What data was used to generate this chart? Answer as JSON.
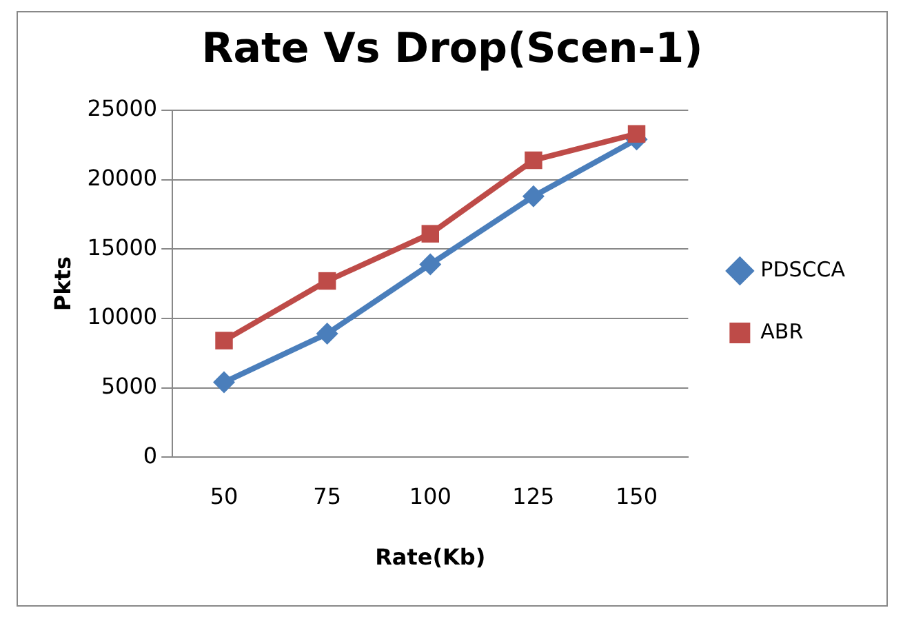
{
  "chart_data": {
    "type": "line",
    "title": "Rate Vs Drop(Scen-1)",
    "xlabel": "Rate(Kb)",
    "ylabel": "Pkts",
    "categories": [
      "50",
      "75",
      "100",
      "125",
      "150"
    ],
    "ylim": [
      0,
      25000
    ],
    "yticks": [
      0,
      5000,
      10000,
      15000,
      20000,
      25000
    ],
    "grid": "y",
    "legend": "right",
    "series": [
      {
        "name": "PDSCCA",
        "color": "#4a7ebb",
        "marker": "diamond",
        "values": [
          5400,
          8900,
          13900,
          18800,
          22900
        ]
      },
      {
        "name": "ABR",
        "color": "#be4b48",
        "marker": "square",
        "values": [
          8400,
          12700,
          16100,
          21400,
          23300
        ]
      }
    ]
  }
}
